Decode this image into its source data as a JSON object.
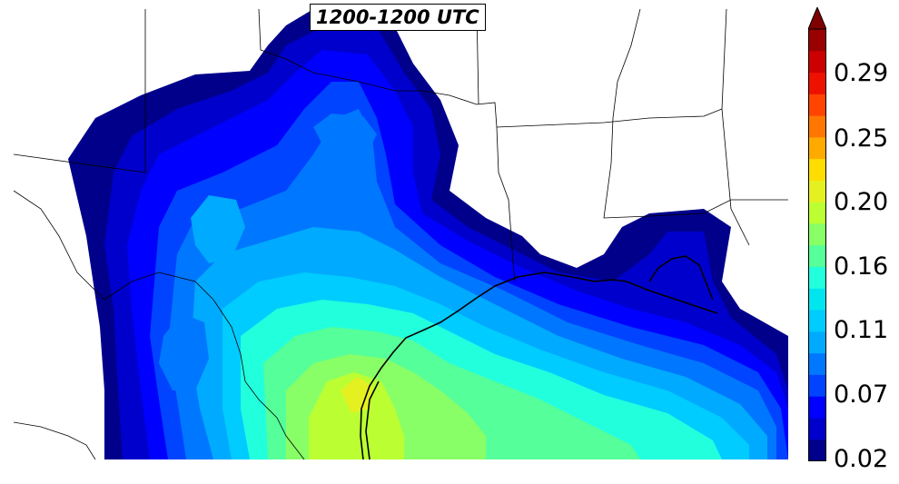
{
  "map": {
    "title": "1200-1200 UTC",
    "colors": {
      "background": "#ffffff",
      "coastline": "#000000",
      "state_borders": "#000000"
    }
  },
  "colorbar": {
    "tick_labels": [
      "0.29",
      "0.25",
      "0.20",
      "0.16",
      "0.11",
      "0.07",
      "0.02"
    ],
    "colors": [
      "#00008b",
      "#0000cd",
      "#0000ff",
      "#0044ff",
      "#0077ff",
      "#00aaff",
      "#00ccff",
      "#00e5ee",
      "#22ffdd",
      "#55ff99",
      "#88ff66",
      "#bbff33",
      "#e5f020",
      "#ffdd00",
      "#ffaa00",
      "#ff7700",
      "#ff4400",
      "#ee1100",
      "#cc0000",
      "#990000",
      "#7f0000"
    ]
  }
}
